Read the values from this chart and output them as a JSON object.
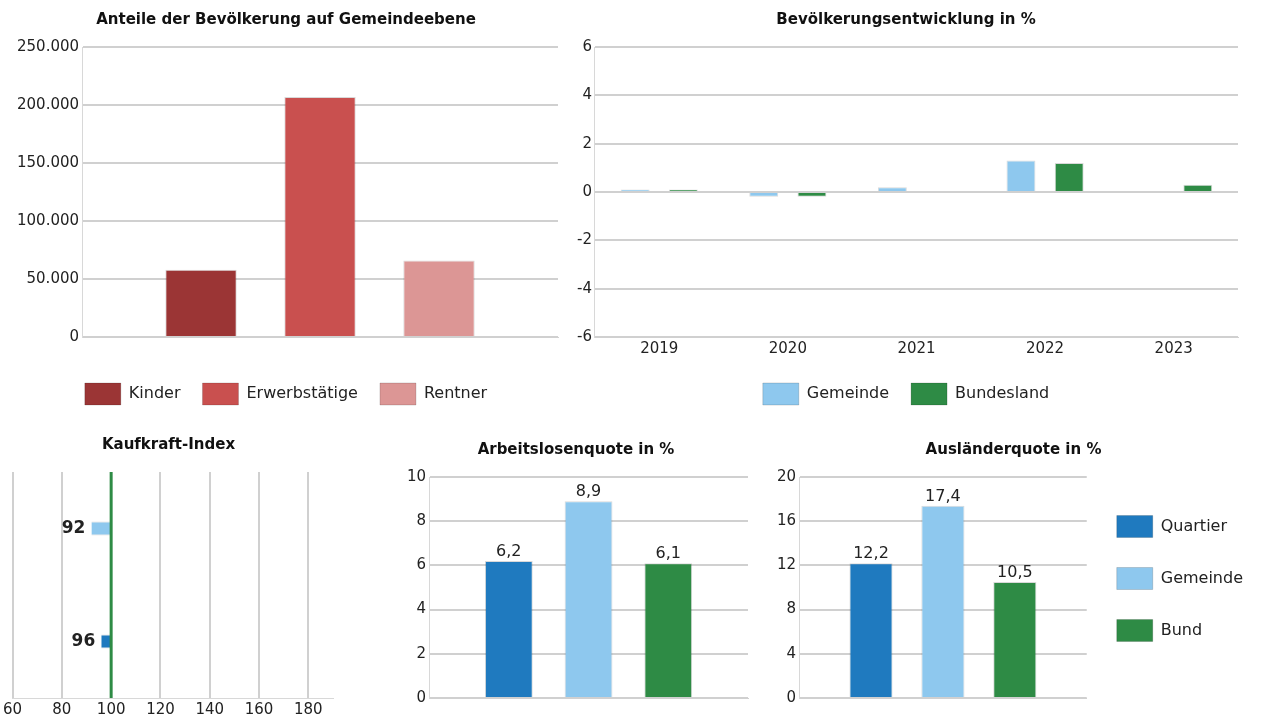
{
  "chart_data": [
    {
      "type": "bar",
      "title": "Anteile der Bevölkerung auf Gemeindeebene",
      "categories": [
        null
      ],
      "series": [
        {
          "name": "Kinder",
          "color": "#9b3535",
          "values": [
            58000
          ]
        },
        {
          "name": "Erwerbstätige",
          "color": "#c9504f",
          "values": [
            207000
          ]
        },
        {
          "name": "Rentner",
          "color": "#dc9695",
          "values": [
            66000
          ]
        }
      ],
      "ylim": [
        0,
        250000
      ],
      "yticks": [
        0,
        {
          "value": 50000,
          "label": "50.000"
        },
        {
          "value": 100000,
          "label": "100.000"
        },
        {
          "value": 150000,
          "label": "150.000"
        },
        {
          "value": 200000,
          "label": "200.000"
        },
        {
          "value": 250000,
          "label": "250.000"
        }
      ],
      "grid": "y",
      "legend": "bottom"
    },
    {
      "type": "bar",
      "title": "Bevölkerungsentwicklung in %",
      "categories": [
        "2019",
        "2020",
        "2021",
        "2022",
        "2023"
      ],
      "series": [
        {
          "name": "Gemeinde",
          "color": "#8ec8ee",
          "values": [
            0.1,
            -0.2,
            0.2,
            1.3,
            0
          ]
        },
        {
          "name": "Bundesland",
          "color": "#2e8b45",
          "values": [
            0.1,
            -0.2,
            0,
            1.2,
            0.3
          ]
        }
      ],
      "ylim": [
        -6,
        6
      ],
      "yticks": [
        -6,
        -4,
        -2,
        0,
        2,
        4,
        6
      ],
      "grid": "y",
      "legend": "bottom"
    },
    {
      "type": "bar",
      "orientation": "horizontal",
      "title": "Kaufkraft-Index",
      "categories": [
        null,
        null
      ],
      "values": [
        -8,
        -4
      ],
      "base": [
        100,
        100
      ],
      "colors": [
        "#8ec8ee",
        "#1f7abf"
      ],
      "value_labels": [
        "92",
        "96"
      ],
      "xlim": [
        60,
        190
      ],
      "xticks": [
        60,
        80,
        100,
        120,
        140,
        160,
        180
      ],
      "grid": "x",
      "ref_lines": [
        {
          "axis": "x",
          "value": 100,
          "color": "#2e8b45"
        }
      ]
    },
    {
      "type": "bar",
      "title": "Arbeitslosenquote in %",
      "categories": [
        null
      ],
      "series": [
        {
          "color": "#1f7abf",
          "values": [
            6.2
          ],
          "value_labels": [
            "6,2"
          ]
        },
        {
          "color": "#8ec8ee",
          "values": [
            8.9
          ],
          "value_labels": [
            "8,9"
          ]
        },
        {
          "color": "#2e8b45",
          "values": [
            6.1
          ],
          "value_labels": [
            "6,1"
          ]
        }
      ],
      "ylim": [
        0,
        10
      ],
      "yticks": [
        0,
        2,
        4,
        6,
        8,
        10
      ],
      "grid": "y"
    },
    {
      "type": "bar",
      "title": "Ausländerquote in %",
      "categories": [
        null
      ],
      "series": [
        {
          "name": "Quartier",
          "color": "#1f7abf",
          "values": [
            12.2
          ],
          "value_labels": [
            "12,2"
          ]
        },
        {
          "name": "Gemeinde",
          "color": "#8ec8ee",
          "values": [
            17.4
          ],
          "value_labels": [
            "17,4"
          ]
        },
        {
          "name": "Bund",
          "color": "#2e8b45",
          "values": [
            10.5
          ],
          "value_labels": [
            "10,5"
          ]
        }
      ],
      "ylim": [
        0,
        20
      ],
      "yticks": [
        0,
        4,
        8,
        12,
        16,
        20
      ],
      "grid": "y",
      "legend": "right"
    }
  ]
}
